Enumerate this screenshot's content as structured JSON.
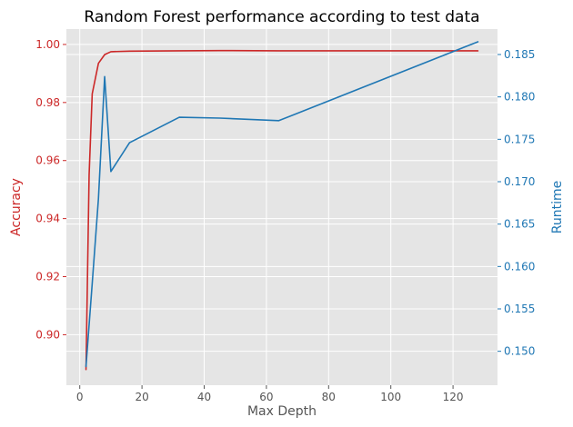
{
  "chart_data": {
    "type": "line",
    "title": "Random Forest performance according to test data",
    "xlabel": "Max Depth",
    "xlim": [
      -4.3,
      134.3
    ],
    "xticks": [
      0,
      20,
      40,
      60,
      80,
      100,
      120
    ],
    "grid": true,
    "background_color": "#e5e5e5",
    "grid_color": "#ffffff",
    "axes": {
      "left": {
        "label": "Accuracy",
        "color": "#cc2828",
        "ylim": [
          0.8826,
          1.0053
        ],
        "ticks": [
          0.9,
          0.92,
          0.94,
          0.96,
          0.98,
          1.0
        ],
        "tick_labels": [
          "0.90",
          "0.92",
          "0.94",
          "0.96",
          "0.98",
          "1.00"
        ]
      },
      "right": {
        "label": "Runtime",
        "color": "#1f77b4",
        "ylim": [
          0.146,
          0.188
        ],
        "ticks": [
          0.15,
          0.155,
          0.16,
          0.165,
          0.17,
          0.175,
          0.18,
          0.185
        ],
        "tick_labels": [
          "0.150",
          "0.155",
          "0.160",
          "0.165",
          "0.170",
          "0.175",
          "0.180",
          "0.185"
        ]
      }
    },
    "series": [
      {
        "axis": "left",
        "color": "#cc2828",
        "x": [
          2,
          3,
          4,
          6,
          8,
          10,
          16,
          32,
          45,
          64,
          128
        ],
        "y": [
          0.888,
          0.955,
          0.983,
          0.9935,
          0.9965,
          0.9975,
          0.9977,
          0.9978,
          0.9979,
          0.9978,
          0.9978
        ]
      },
      {
        "axis": "right",
        "color": "#1f77b4",
        "x": [
          2,
          4,
          6,
          8,
          10,
          16,
          32,
          45,
          64,
          128
        ],
        "y": [
          0.1482,
          0.158,
          0.168,
          0.1824,
          0.1712,
          0.1746,
          0.1776,
          0.1775,
          0.1772,
          0.1865
        ]
      }
    ]
  }
}
